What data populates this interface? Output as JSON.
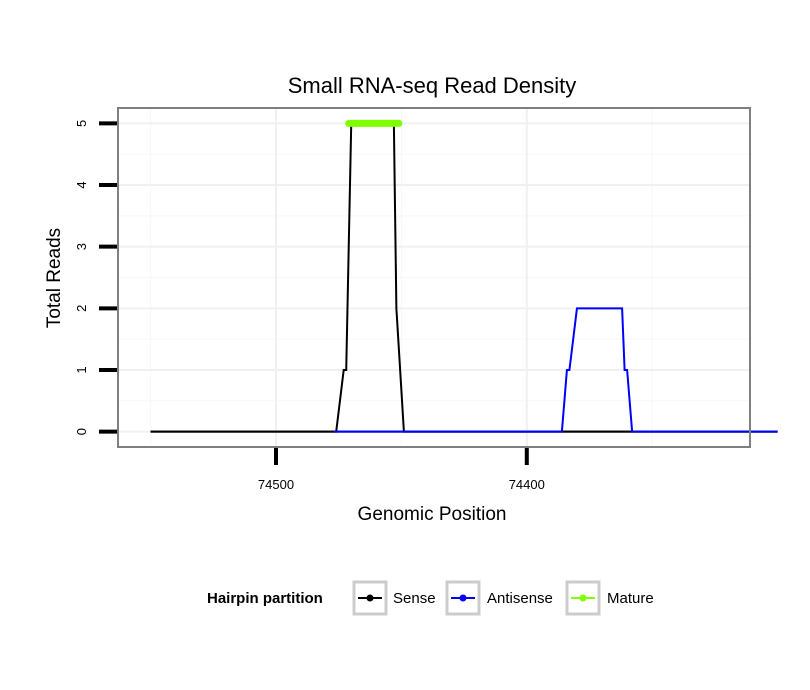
{
  "chart_data": {
    "type": "line",
    "title": "Small RNA-seq Read Density",
    "xlabel": "Genomic Position",
    "ylabel": "Total Reads",
    "x_reversed": true,
    "xlim": [
      74563,
      74311
    ],
    "ylim": [
      -0.25,
      5.25
    ],
    "x_ticks": [
      74500,
      74400
    ],
    "x_tick_labels": [
      "74500",
      "74400"
    ],
    "y_ticks": [
      0,
      1,
      2,
      3,
      4,
      5
    ],
    "y_tick_labels": [
      "0",
      "1",
      "2",
      "3",
      "4",
      "5"
    ],
    "grid": true,
    "series": [
      {
        "name": "Sense",
        "color": "#000000",
        "x": [
          74550,
          74424,
          74423,
          74410,
          74408,
          74404,
          74397,
          74392,
          74391,
          74386,
          74384,
          74300
        ],
        "y": [
          0,
          0,
          0,
          0,
          0,
          0,
          0,
          0,
          0,
          0,
          0,
          0
        ]
      },
      {
        "name": "Sense",
        "color": "#000000",
        "x": [
          74550,
          74476,
          74473,
          74472,
          74470,
          74453,
          74452,
          74449,
          74300
        ],
        "y": [
          0,
          0,
          1,
          1,
          5,
          5,
          2,
          0,
          0
        ]
      },
      {
        "name": "Antisense",
        "color": "#0000ff",
        "x": [
          74477,
          74450,
          74386,
          74384,
          74383,
          74380,
          74362,
          74361,
          74360,
          74358,
          74300
        ],
        "y": [
          0,
          0,
          0,
          1,
          1,
          2,
          2,
          1,
          1,
          0,
          0
        ]
      },
      {
        "name": "Mature",
        "color": "#7fff00",
        "x": [
          74471,
          74451
        ],
        "y": [
          5,
          5
        ]
      }
    ],
    "legend": {
      "title": "Hairpin partition",
      "position": "bottom",
      "entries": [
        {
          "label": "Sense",
          "color": "#000000"
        },
        {
          "label": "Antisense",
          "color": "#0000ff"
        },
        {
          "label": "Mature",
          "color": "#7fff00"
        }
      ]
    }
  }
}
